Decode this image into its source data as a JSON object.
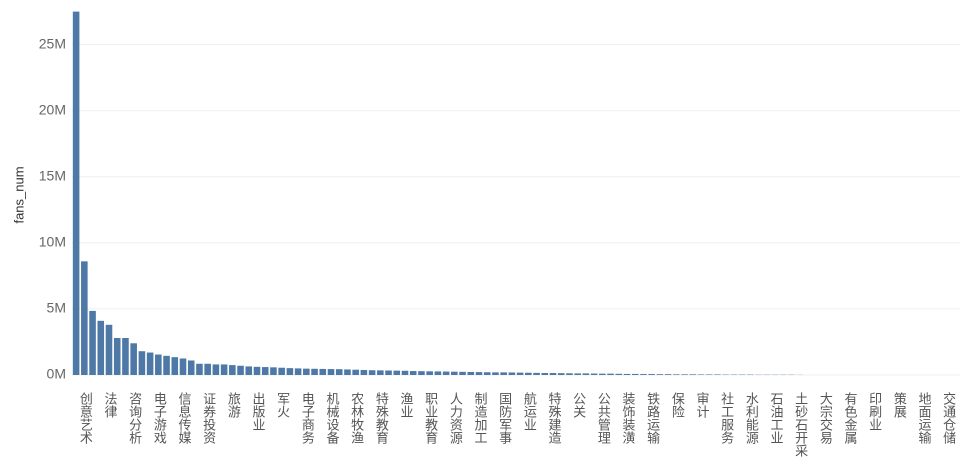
{
  "chart_data": {
    "type": "bar",
    "y_label": "fans_num",
    "categories": [
      null,
      "创意艺术",
      null,
      null,
      "法律",
      null,
      null,
      "咨询分析",
      null,
      null,
      "电子游戏",
      null,
      null,
      "信息传媒",
      null,
      null,
      "证券投资",
      null,
      null,
      "旅游",
      null,
      null,
      "出版业",
      null,
      null,
      "军火",
      null,
      null,
      "电子商务",
      null,
      null,
      "机械设备",
      null,
      null,
      "农林牧渔",
      null,
      null,
      "特殊教育",
      null,
      null,
      "渔业",
      null,
      null,
      "职业教育",
      null,
      null,
      "人力资源",
      null,
      null,
      "制造加工",
      null,
      null,
      "国防军事",
      null,
      null,
      "航运业",
      null,
      null,
      "特殊建造",
      null,
      null,
      "公关",
      null,
      null,
      "公共管理",
      null,
      null,
      "装饰装潢",
      null,
      null,
      "铁路运输",
      null,
      null,
      "保险",
      null,
      null,
      "审计",
      null,
      null,
      "社工服务",
      null,
      null,
      "水利能源",
      null,
      null,
      "石油工业",
      null,
      null,
      "土砂石开采",
      null,
      null,
      "大宗交易",
      null,
      null,
      "有色金属",
      null,
      null,
      "印刷业",
      null,
      null,
      "策展",
      null,
      null,
      "地面运输",
      null,
      null,
      "交通仓储",
      null
    ],
    "values": [
      27.5,
      8.6,
      4.85,
      4.1,
      3.8,
      2.8,
      2.8,
      2.4,
      1.8,
      1.7,
      1.55,
      1.45,
      1.35,
      1.25,
      1.1,
      0.85,
      0.85,
      0.8,
      0.8,
      0.75,
      0.7,
      0.65,
      0.62,
      0.6,
      0.58,
      0.55,
      0.52,
      0.5,
      0.48,
      0.47,
      0.46,
      0.45,
      0.44,
      0.42,
      0.4,
      0.38,
      0.36,
      0.35,
      0.34,
      0.33,
      0.32,
      0.3,
      0.29,
      0.28,
      0.27,
      0.26,
      0.25,
      0.24,
      0.23,
      0.22,
      0.21,
      0.2,
      0.2,
      0.19,
      0.18,
      0.17,
      0.16,
      0.15,
      0.15,
      0.14,
      0.13,
      0.12,
      0.12,
      0.11,
      0.1,
      0.1,
      0.09,
      0.08,
      0.08,
      0.07,
      0.07,
      0.06,
      0.06,
      0.05,
      0.05,
      0.05,
      0.04,
      0.04,
      0.04,
      0.03,
      0.03,
      0.03,
      0.03,
      0.02,
      0.02,
      0.02,
      0.02,
      0.02,
      0.01,
      0,
      0,
      0,
      0,
      0,
      0,
      0,
      0,
      0,
      0,
      0,
      0,
      0,
      0,
      0,
      0,
      0,
      0,
      0
    ],
    "color": "#4e79a7",
    "ylim": [
      0,
      28
    ],
    "yticks": [
      {
        "value": 0,
        "label": "0M"
      },
      {
        "value": 5,
        "label": "5M"
      },
      {
        "value": 10,
        "label": "10M"
      },
      {
        "value": 15,
        "label": "15M"
      },
      {
        "value": 20,
        "label": "20M"
      },
      {
        "value": 25,
        "label": "25M"
      }
    ],
    "grid": true
  }
}
